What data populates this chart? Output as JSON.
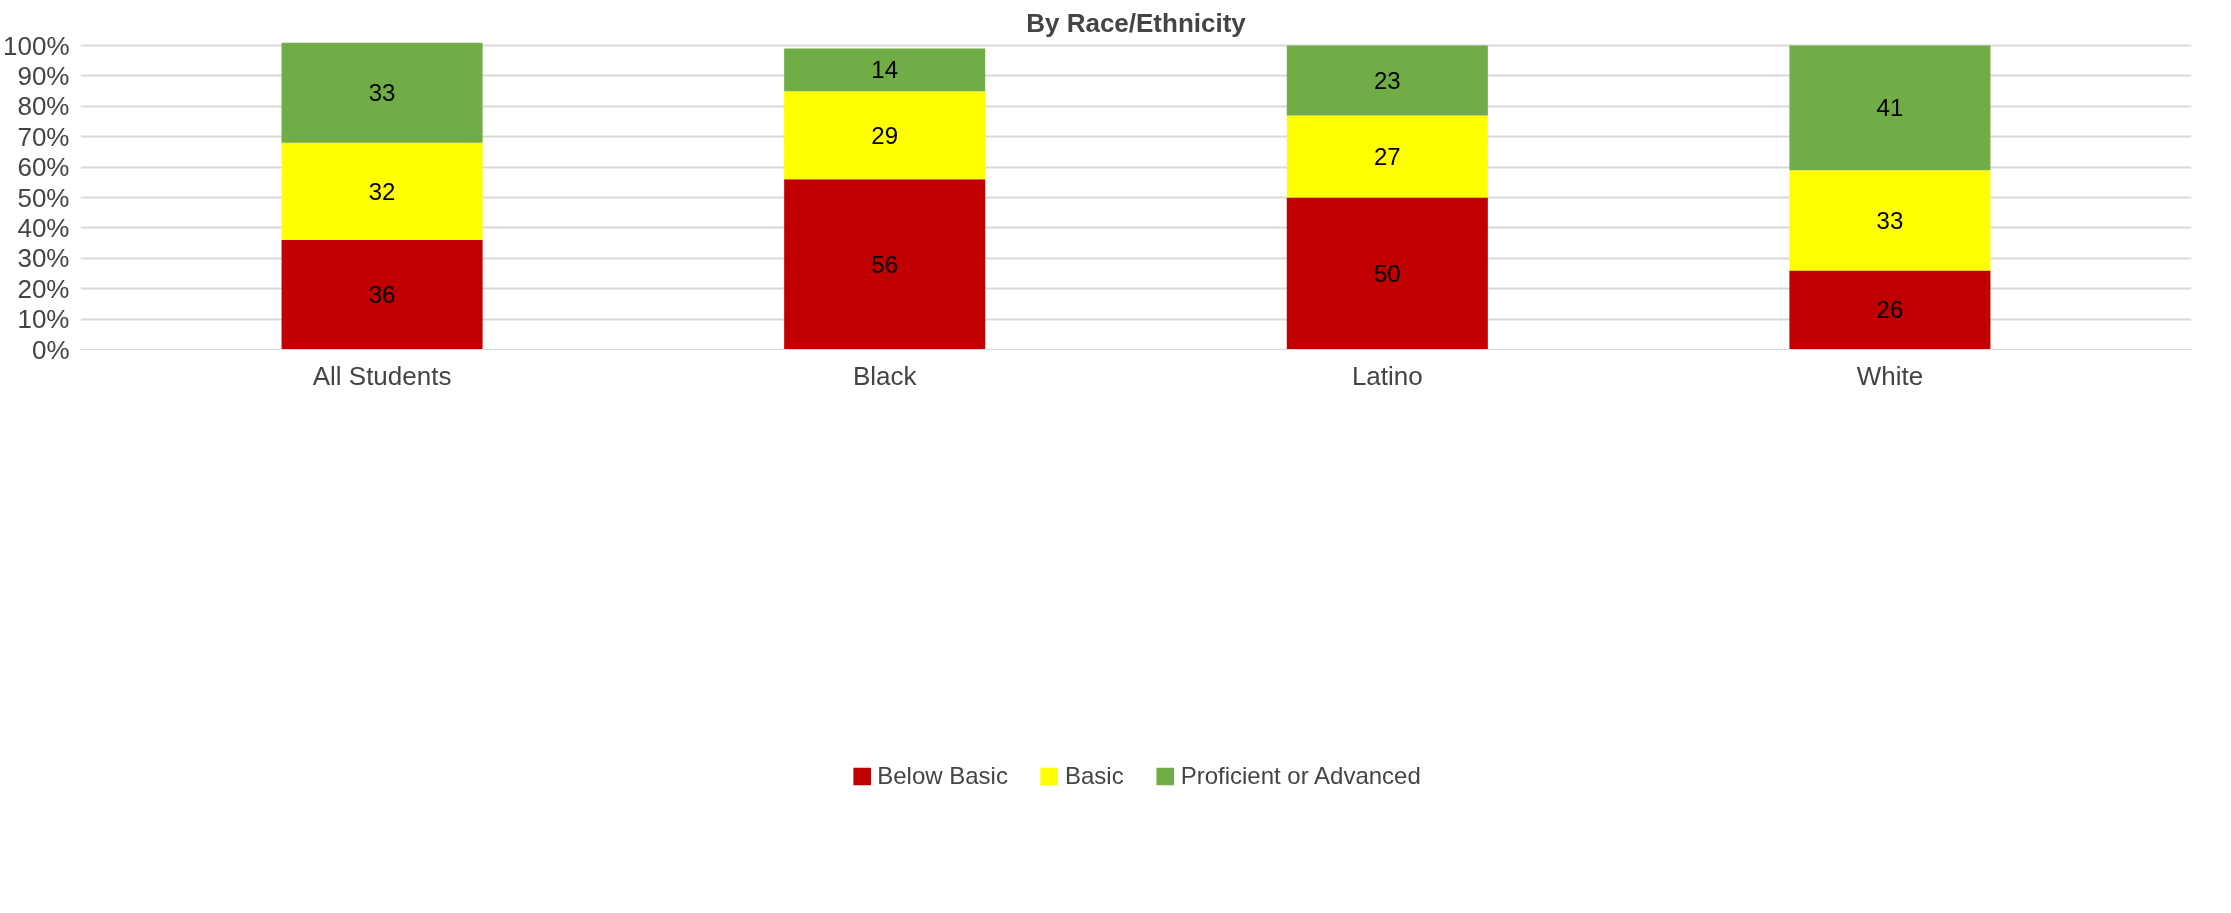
{
  "chart_data": {
    "type": "bar",
    "title": "By Race/Ethnicity",
    "stacked": true,
    "data_labels": true,
    "categories": [
      "All Students",
      "Black",
      "Latino",
      "White"
    ],
    "series": [
      {
        "name": "Below Basic",
        "color": "#c00000",
        "values": [
          36,
          56,
          50,
          26
        ]
      },
      {
        "name": "Basic",
        "color": "#ffff00",
        "values": [
          32,
          29,
          27,
          33
        ]
      },
      {
        "name": "Proficient or Advanced",
        "color": "#70ad47",
        "values": [
          33,
          14,
          23,
          41
        ]
      }
    ],
    "ylim": [
      0,
      101
    ],
    "yticks": [
      {
        "value": 0,
        "label": "0%"
      },
      {
        "value": 10,
        "label": "10%"
      },
      {
        "value": 20,
        "label": "20%"
      },
      {
        "value": 30,
        "label": "30%"
      },
      {
        "value": 40,
        "label": "40%"
      },
      {
        "value": 50,
        "label": "50%"
      },
      {
        "value": 60,
        "label": "60%"
      },
      {
        "value": 70,
        "label": "70%"
      },
      {
        "value": 80,
        "label": "80%"
      },
      {
        "value": 90,
        "label": "90%"
      },
      {
        "value": 100,
        "label": "100%"
      }
    ],
    "grid": "y",
    "legend": "bottom"
  }
}
